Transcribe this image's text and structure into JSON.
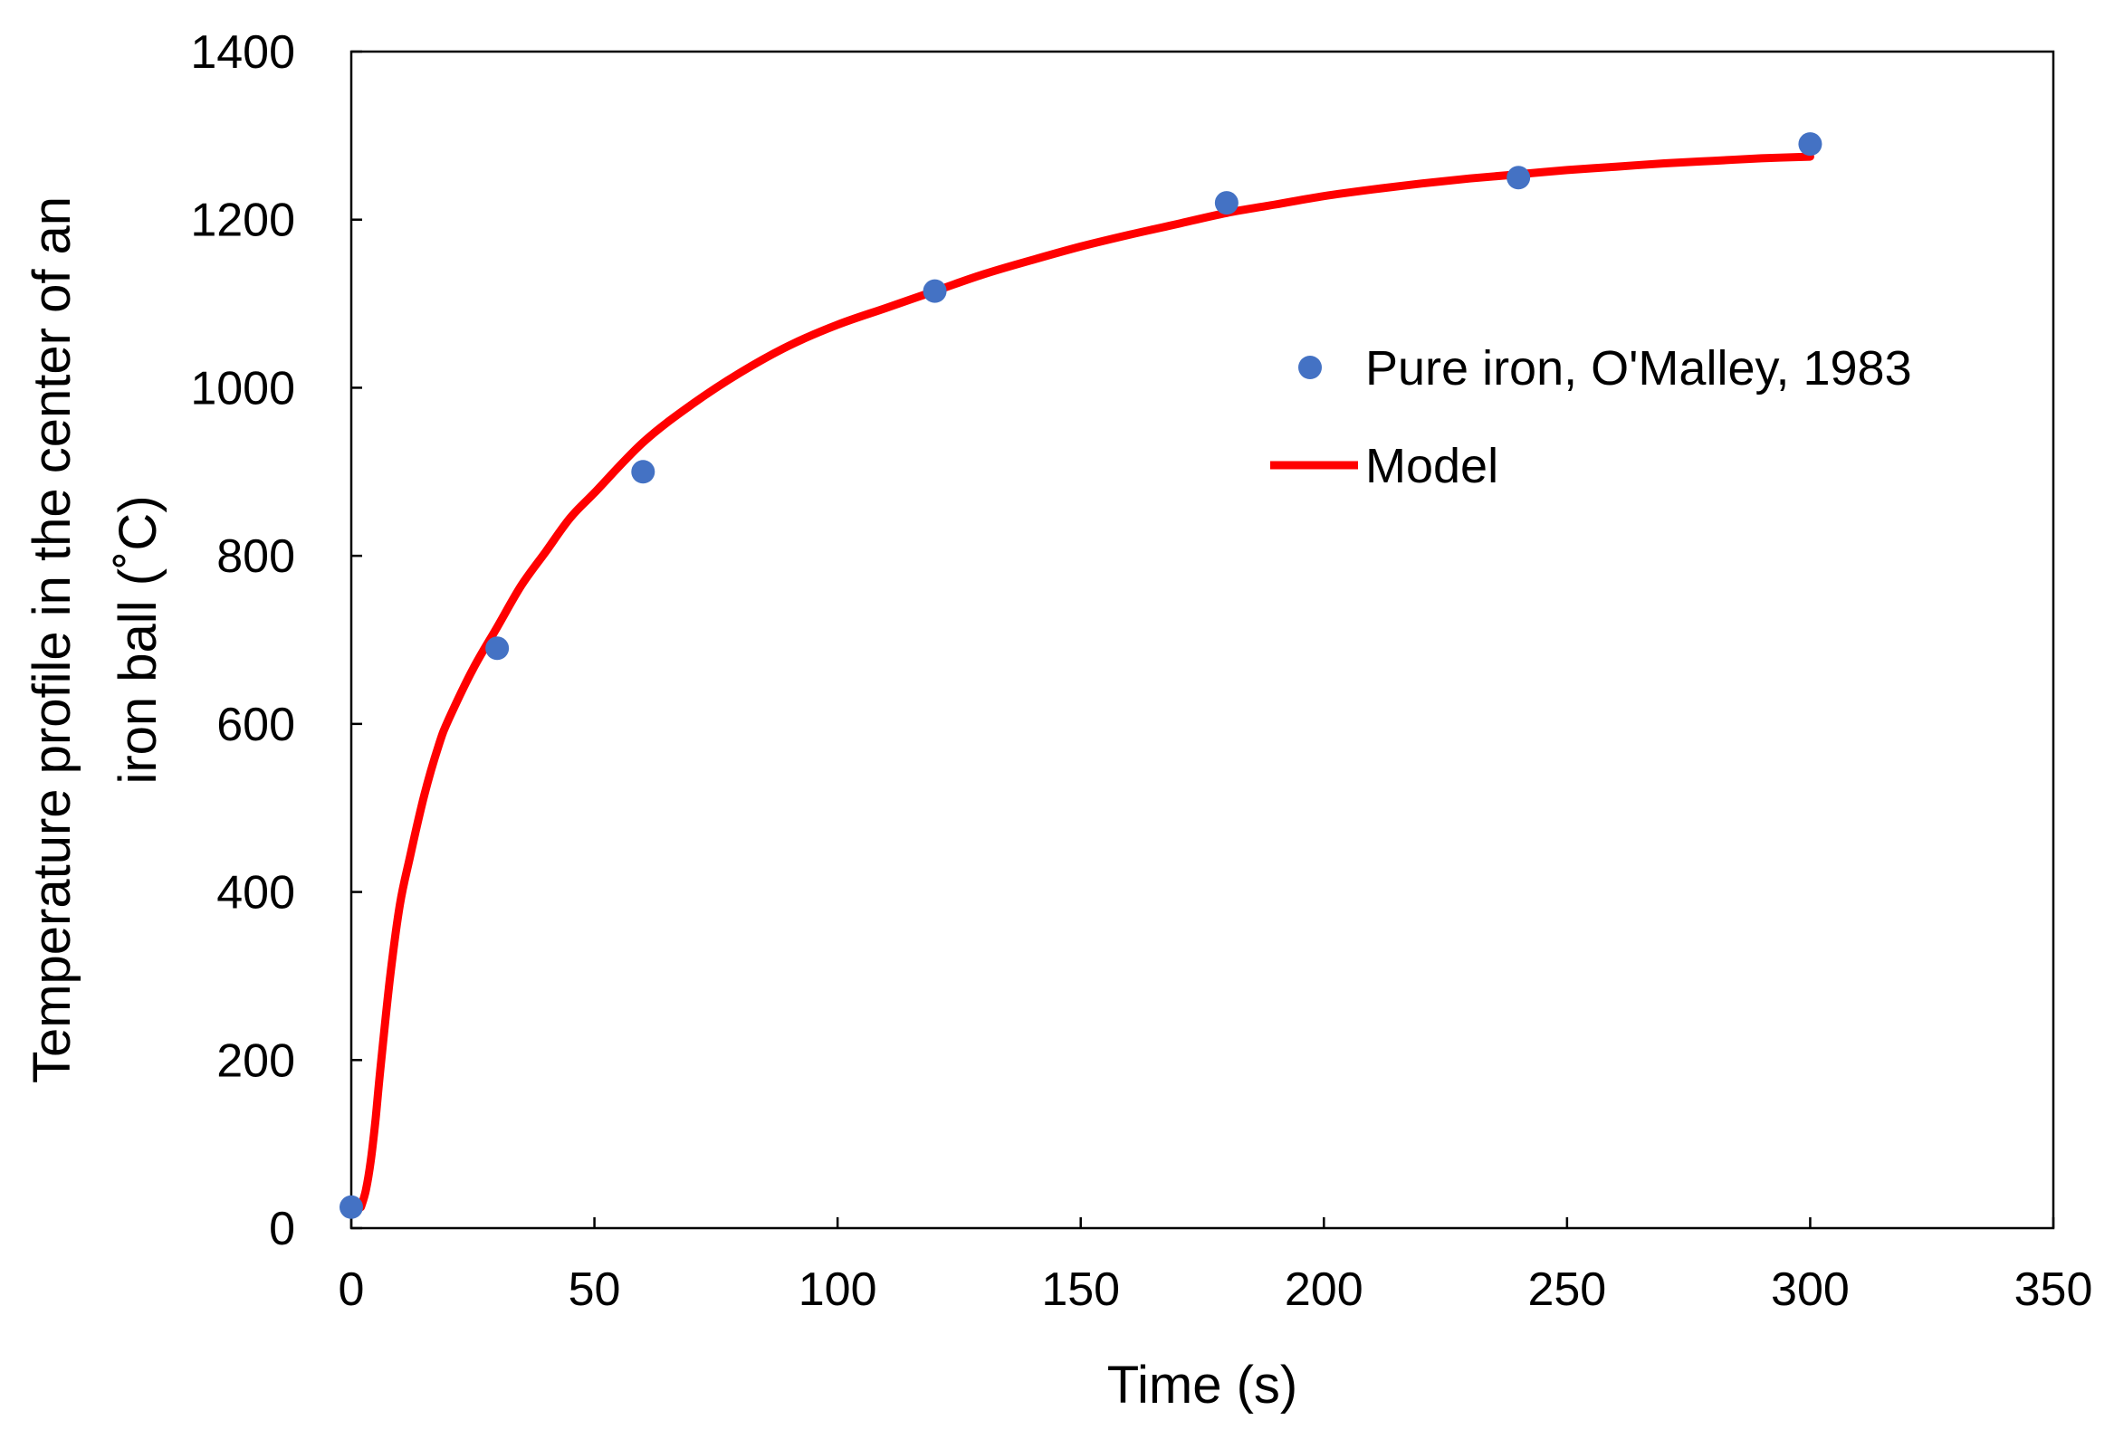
{
  "chart_data": {
    "type": "scatter",
    "title": "",
    "xlabel": "Time (s)",
    "ylabel_line1": "Temperature profile in the center of an",
    "ylabel_line2": "iron ball (˚C)",
    "xlim": [
      0,
      350
    ],
    "ylim": [
      0,
      1400
    ],
    "x_ticks": [
      0,
      50,
      100,
      150,
      200,
      250,
      300,
      350
    ],
    "y_ticks": [
      0,
      200,
      400,
      600,
      800,
      1000,
      1200,
      1400
    ],
    "x_tick_labels": [
      "0",
      "50",
      "100",
      "150",
      "200",
      "250",
      "300",
      "350"
    ],
    "y_tick_labels": [
      "0",
      "200",
      "400",
      "600",
      "800",
      "1000",
      "1200",
      "1400"
    ],
    "grid": false,
    "legend_position": "right-center",
    "series": [
      {
        "name": "Pure iron, O'Malley, 1983",
        "kind": "scatter",
        "color": "#4472C4",
        "x": [
          0,
          30,
          60,
          120,
          180,
          240,
          300
        ],
        "y": [
          25,
          690,
          900,
          1115,
          1220,
          1250,
          1290
        ]
      },
      {
        "name": "Model",
        "kind": "line",
        "color": "#FF0000",
        "x": [
          2,
          3,
          4,
          5,
          6,
          8,
          10,
          12,
          15,
          18,
          20,
          25,
          30,
          35,
          40,
          45,
          50,
          60,
          70,
          80,
          90,
          100,
          110,
          120,
          130,
          140,
          150,
          160,
          170,
          180,
          190,
          200,
          210,
          220,
          230,
          240,
          250,
          260,
          270,
          280,
          290,
          300
        ],
        "y": [
          25,
          45,
          80,
          130,
          190,
          300,
          385,
          440,
          515,
          575,
          605,
          665,
          715,
          765,
          805,
          845,
          875,
          935,
          980,
          1018,
          1050,
          1075,
          1095,
          1115,
          1135,
          1152,
          1168,
          1182,
          1195,
          1208,
          1218,
          1228,
          1236,
          1243,
          1249,
          1254,
          1259,
          1263,
          1267,
          1270,
          1273,
          1275
        ]
      }
    ]
  }
}
